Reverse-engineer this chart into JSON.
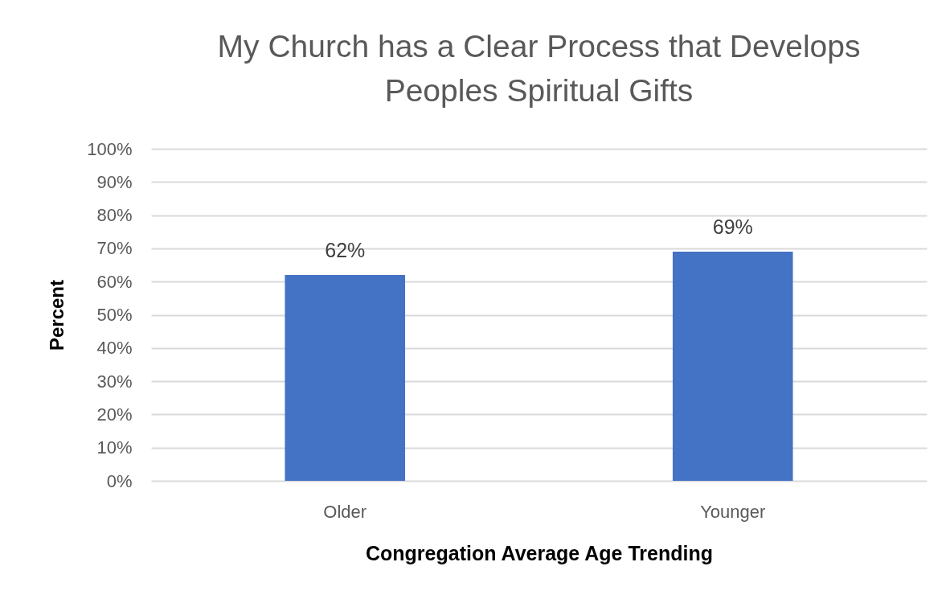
{
  "chart_data": {
    "type": "bar",
    "title": "My Church has a Clear Process that Develops Peoples Spiritual Gifts",
    "xlabel": "Congregation Average Age Trending",
    "ylabel": "Percent",
    "categories": [
      "Older",
      "Younger"
    ],
    "values": [
      62,
      69
    ],
    "value_labels": [
      "62%",
      "69%"
    ],
    "color": "#4472c4",
    "ylim": [
      0,
      100
    ],
    "yticks": [
      {
        "value": 0,
        "label": "0%"
      },
      {
        "value": 10,
        "label": "10%"
      },
      {
        "value": 20,
        "label": "20%"
      },
      {
        "value": 30,
        "label": "30%"
      },
      {
        "value": 40,
        "label": "40%"
      },
      {
        "value": 50,
        "label": "50%"
      },
      {
        "value": 60,
        "label": "60%"
      },
      {
        "value": 70,
        "label": "70%"
      },
      {
        "value": 80,
        "label": "80%"
      },
      {
        "value": 90,
        "label": "90%"
      },
      {
        "value": 100,
        "label": "100%"
      }
    ],
    "grid": true
  }
}
